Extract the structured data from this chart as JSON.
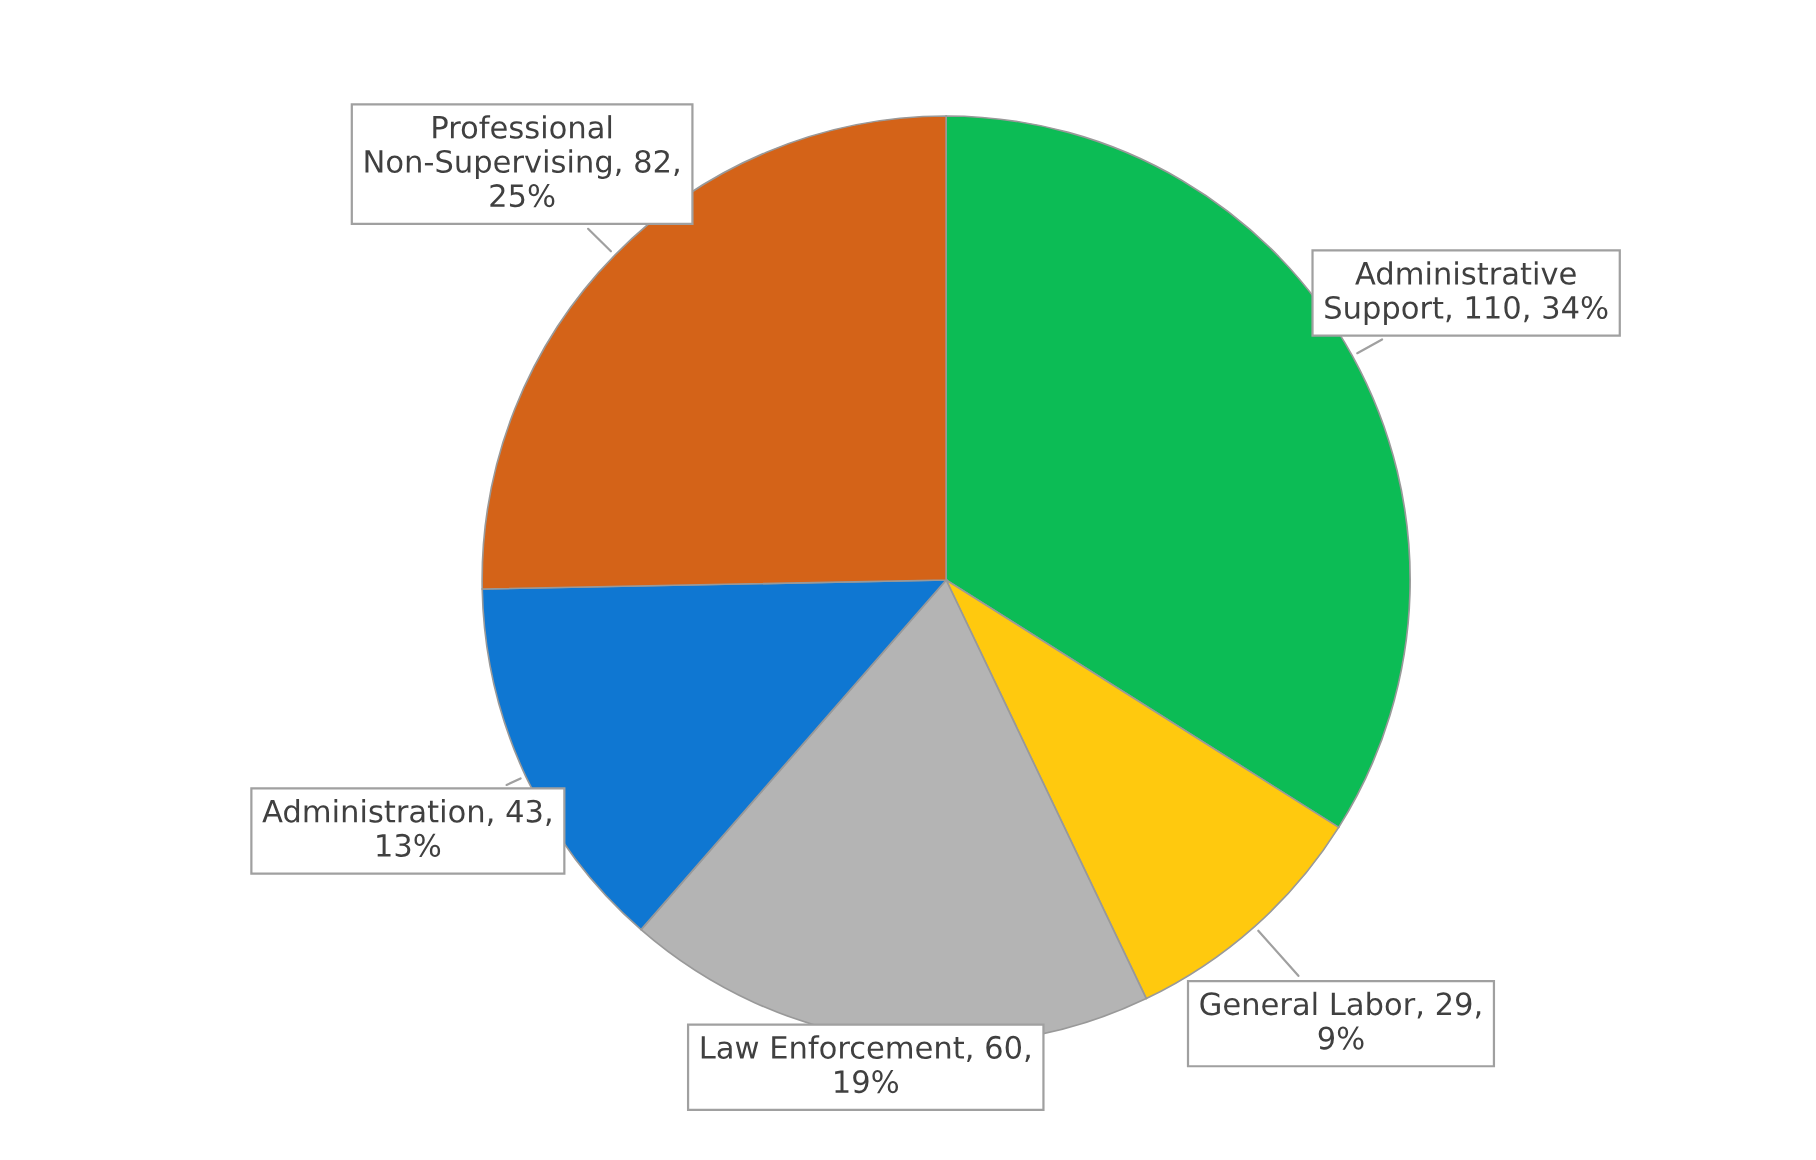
{
  "chart_data": {
    "type": "pie",
    "categories": [
      "Administrative Support",
      "General Labor",
      "Law Enforcement",
      "Administration",
      "Professional Non-Supervising"
    ],
    "values": [
      110,
      29,
      60,
      43,
      82
    ],
    "value_labels": [
      ", 110, 34%",
      ", 29, 9%",
      ", 60, 19%",
      ", 43, 13%",
      ", 82, 25%"
    ],
    "colors": [
      "#0cbc55",
      "#ffc90e",
      "#b4b4b4",
      "#0f77d2",
      "#d46318"
    ],
    "legend": false
  }
}
